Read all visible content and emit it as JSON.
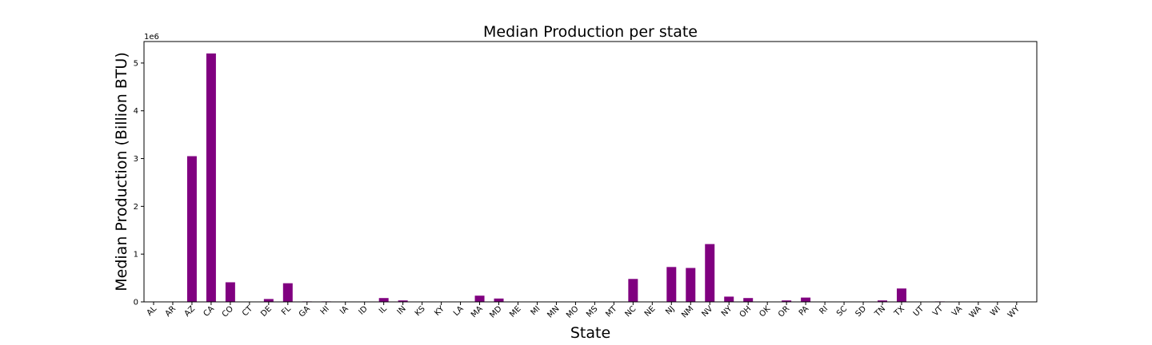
{
  "chart_data": {
    "type": "bar",
    "title": "Median Production per state",
    "xlabel": "State",
    "ylabel": "Median Production (Billion BTU)",
    "y_offset_label": "1e6",
    "ylim": [
      0,
      5.45
    ],
    "yticks": [
      0,
      1,
      2,
      3,
      4,
      5
    ],
    "y_unit_multiplier": 1000000,
    "bar_color": "#800080",
    "grid": false,
    "legend": "none",
    "categories": [
      "AL",
      "AR",
      "AZ",
      "CA",
      "CO",
      "CT",
      "DE",
      "FL",
      "GA",
      "HI",
      "IA",
      "ID",
      "IL",
      "IN",
      "KS",
      "KY",
      "LA",
      "MA",
      "MD",
      "ME",
      "MI",
      "MN",
      "MO",
      "MS",
      "MT",
      "NC",
      "NE",
      "NJ",
      "NM",
      "NV",
      "NY",
      "OH",
      "OK",
      "OR",
      "PA",
      "RI",
      "SC",
      "SD",
      "TN",
      "TX",
      "UT",
      "VT",
      "VA",
      "WA",
      "WI",
      "WY"
    ],
    "values": [
      0,
      0,
      3.05,
      5.2,
      0.41,
      0,
      0.06,
      0.39,
      0.01,
      0.01,
      0,
      0,
      0.08,
      0.03,
      0,
      0,
      0,
      0.13,
      0.07,
      0,
      0,
      0,
      0,
      0,
      0,
      0.48,
      0,
      0.73,
      0.71,
      1.21,
      0.11,
      0.08,
      0,
      0.03,
      0.09,
      0,
      0,
      0,
      0.03,
      0.28,
      0,
      0.01,
      0,
      0,
      0,
      0
    ]
  }
}
